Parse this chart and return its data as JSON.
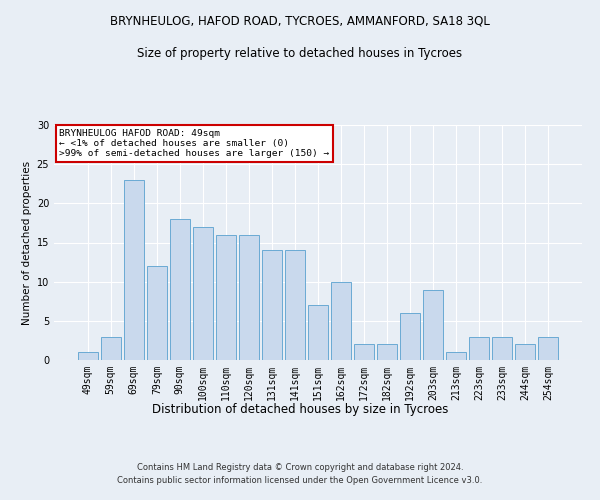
{
  "title": "BRYNHEULOG, HAFOD ROAD, TYCROES, AMMANFORD, SA18 3QL",
  "subtitle": "Size of property relative to detached houses in Tycroes",
  "xlabel": "Distribution of detached houses by size in Tycroes",
  "ylabel": "Number of detached properties",
  "categories": [
    "49sqm",
    "59sqm",
    "69sqm",
    "79sqm",
    "90sqm",
    "100sqm",
    "110sqm",
    "120sqm",
    "131sqm",
    "141sqm",
    "151sqm",
    "162sqm",
    "172sqm",
    "182sqm",
    "192sqm",
    "203sqm",
    "213sqm",
    "223sqm",
    "233sqm",
    "244sqm",
    "254sqm"
  ],
  "bar_heights": [
    1,
    3,
    23,
    12,
    18,
    17,
    16,
    16,
    14,
    14,
    7,
    10,
    2,
    2,
    6,
    9,
    1,
    3,
    3,
    2,
    3
  ],
  "bar_color": "#c9d9ed",
  "bar_edge_color": "#6aaad4",
  "annotation_title": "BRYNHEULOG HAFOD ROAD: 49sqm",
  "annotation_line2": "← <1% of detached houses are smaller (0)",
  "annotation_line3": ">99% of semi-detached houses are larger (150) →",
  "annotation_box_color": "#ffffff",
  "annotation_box_edge": "#cc0000",
  "footer1": "Contains HM Land Registry data © Crown copyright and database right 2024.",
  "footer2": "Contains public sector information licensed under the Open Government Licence v3.0.",
  "background_color": "#e8eef5",
  "plot_background": "#e8eef5",
  "ylim": [
    0,
    30
  ],
  "grid_color": "#ffffff",
  "title_fontsize": 8.5,
  "subtitle_fontsize": 8.5,
  "ylabel_fontsize": 7.5,
  "xlabel_fontsize": 8.5,
  "tick_fontsize": 7,
  "footer_fontsize": 6
}
